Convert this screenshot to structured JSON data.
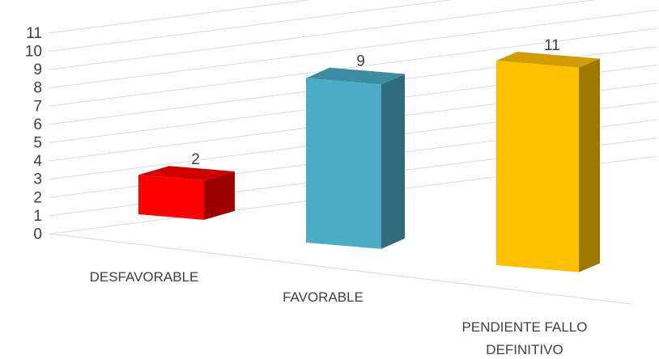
{
  "chart_data": {
    "type": "bar",
    "style": "3d-column",
    "categories": [
      "DESFAVORABLE",
      "FAVORABLE",
      "PENDIENTE FALLO DEFINITIVO"
    ],
    "values": [
      2,
      9,
      11
    ],
    "colors": [
      "#ff0000",
      "#4bacc6",
      "#ffc000"
    ],
    "ylim": [
      0,
      11
    ],
    "yticks": [
      0,
      1,
      2,
      3,
      4,
      5,
      6,
      7,
      8,
      9,
      10,
      11
    ],
    "grid": true,
    "legend": "none",
    "title": "",
    "xlabel": "",
    "ylabel": ""
  }
}
